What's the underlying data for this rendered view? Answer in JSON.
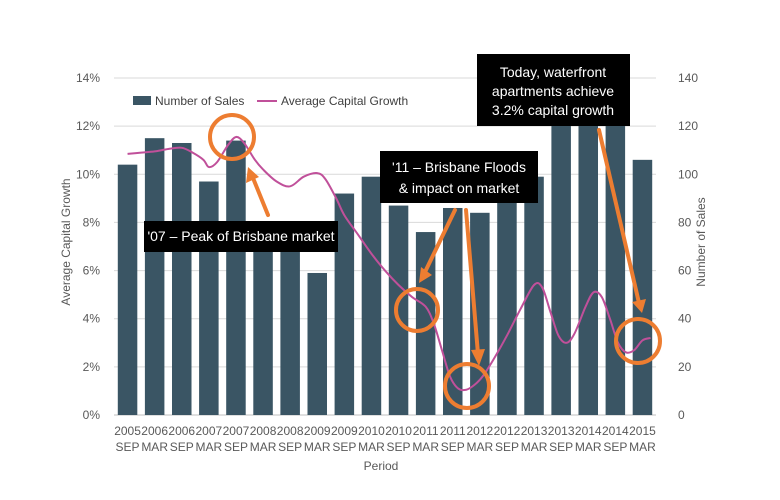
{
  "chart_data": {
    "type": "bar+line",
    "categories": [
      [
        "2005",
        "SEP"
      ],
      [
        "2006",
        "MAR"
      ],
      [
        "2006",
        "SEP"
      ],
      [
        "2007",
        "MAR"
      ],
      [
        "2007",
        "SEP"
      ],
      [
        "2008",
        "MAR"
      ],
      [
        "2008",
        "SEP"
      ],
      [
        "2009",
        "MAR"
      ],
      [
        "2009",
        "SEP"
      ],
      [
        "2010",
        "MAR"
      ],
      [
        "2010",
        "SEP"
      ],
      [
        "2011",
        "MAR"
      ],
      [
        "2011",
        "SEP"
      ],
      [
        "2012",
        "MAR"
      ],
      [
        "2012",
        "SEP"
      ],
      [
        "2013",
        "MAR"
      ],
      [
        "2013",
        "SEP"
      ],
      [
        "2014",
        "MAR"
      ],
      [
        "2014",
        "SEP"
      ],
      [
        "2015",
        "MAR"
      ]
    ],
    "xlabel": "Period",
    "ylabel_left": "Average Capital Growth",
    "ylabel_right": "Number of Sales",
    "ylim_left": [
      0,
      14
    ],
    "ylim_right": [
      0,
      140
    ],
    "left_ticks": [
      "0%",
      "2%",
      "4%",
      "6%",
      "8%",
      "10%",
      "12%",
      "14%"
    ],
    "right_ticks": [
      "0",
      "20",
      "40",
      "60",
      "80",
      "100",
      "120",
      "140"
    ],
    "grid": true,
    "legend_position": "top-left",
    "series": [
      {
        "name": "Number of Sales",
        "kind": "bar",
        "axis": "right",
        "color": "#3a5564",
        "values": [
          104,
          115,
          113,
          97,
          114,
          78,
          68,
          59,
          92,
          99,
          87,
          76,
          86,
          84,
          90,
          99,
          130,
          130,
          130,
          106
        ]
      },
      {
        "name": "Average Capital Growth",
        "kind": "line",
        "axis": "left",
        "color": "#c0509a",
        "points": [
          [
            0,
            10.85
          ],
          [
            0.5,
            10.9
          ],
          [
            1,
            10.95
          ],
          [
            1.5,
            11.05
          ],
          [
            2,
            11.1
          ],
          [
            2.4,
            10.9
          ],
          [
            2.8,
            10.6
          ],
          [
            3,
            10.3
          ],
          [
            3.3,
            10.5
          ],
          [
            3.7,
            11.2
          ],
          [
            4,
            11.55
          ],
          [
            4.3,
            11.3
          ],
          [
            4.7,
            10.6
          ],
          [
            5,
            10.2
          ],
          [
            5.5,
            9.7
          ],
          [
            6,
            9.5
          ],
          [
            6.5,
            9.9
          ],
          [
            7,
            10.05
          ],
          [
            7.3,
            9.8
          ],
          [
            7.7,
            9.0
          ],
          [
            8,
            8.3
          ],
          [
            8.5,
            7.5
          ],
          [
            9,
            6.7
          ],
          [
            9.5,
            6.0
          ],
          [
            10,
            5.4
          ],
          [
            10.5,
            4.9
          ],
          [
            11,
            4.5
          ],
          [
            11.3,
            3.8
          ],
          [
            11.6,
            2.7
          ],
          [
            11.9,
            1.6
          ],
          [
            12.2,
            1.1
          ],
          [
            12.5,
            1.05
          ],
          [
            12.8,
            1.25
          ],
          [
            13.1,
            1.6
          ],
          [
            13.5,
            2.3
          ],
          [
            14,
            3.3
          ],
          [
            14.5,
            4.4
          ],
          [
            15,
            5.4
          ],
          [
            15.3,
            5.3
          ],
          [
            15.6,
            4.3
          ],
          [
            15.9,
            3.3
          ],
          [
            16.2,
            3.0
          ],
          [
            16.5,
            3.4
          ],
          [
            16.9,
            4.5
          ],
          [
            17.2,
            5.1
          ],
          [
            17.5,
            4.9
          ],
          [
            17.8,
            4.0
          ],
          [
            18.1,
            3.0
          ],
          [
            18.4,
            2.6
          ],
          [
            18.7,
            2.7
          ],
          [
            19,
            3.1
          ],
          [
            19.3,
            3.2
          ]
        ]
      }
    ],
    "annotations": [
      {
        "text": "'07 – Peak of Brisbane market"
      },
      {
        "lines": [
          "'11 – Brisbane Floods",
          "& impact on market"
        ]
      },
      {
        "lines": [
          "Today, waterfront",
          "apartments achieve",
          "3.2% capital growth"
        ]
      }
    ],
    "highlight_color": "#ed7d31"
  }
}
